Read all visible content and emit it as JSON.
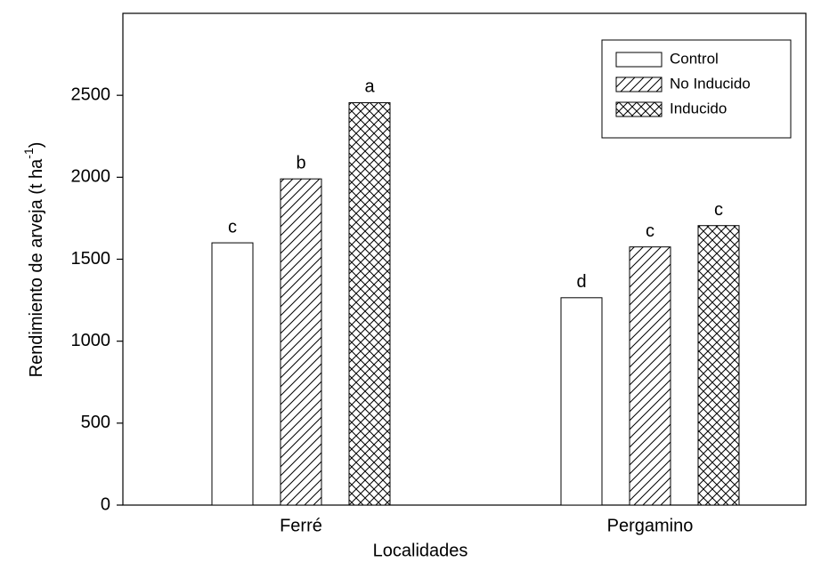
{
  "chart_data": {
    "type": "bar",
    "xlabel": "Localidades",
    "ylabel": "Rendimiento de arveja (t ha",
    "ylabel_sup": "-1",
    "ylabel_end": ")",
    "categories": [
      "Ferré",
      "Pergamino"
    ],
    "series": [
      {
        "name": "Control",
        "pattern": "none",
        "values": [
          1600,
          1265
        ],
        "letters": [
          "c",
          "d"
        ]
      },
      {
        "name": "No Inducido",
        "pattern": "hatch",
        "values": [
          1990,
          1575
        ],
        "letters": [
          "b",
          "c"
        ]
      },
      {
        "name": "Inducido",
        "pattern": "crosshatch",
        "values": [
          2455,
          1705
        ],
        "letters": [
          "a",
          "c"
        ]
      }
    ],
    "ylim": [
      0,
      3000
    ],
    "yticks": [
      0,
      500,
      1000,
      1500,
      2000,
      2500
    ],
    "grid": false,
    "legend": "upper right"
  }
}
